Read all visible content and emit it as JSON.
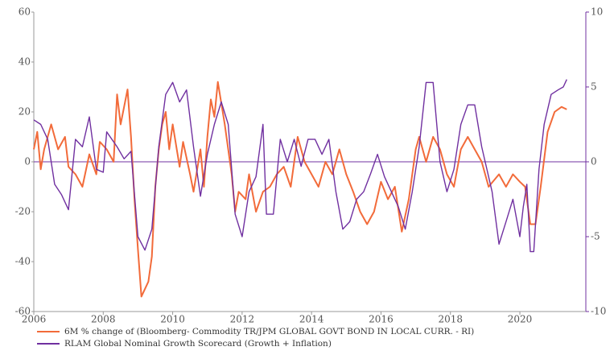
{
  "chart_data": {
    "type": "line",
    "xlim": [
      2006,
      2021.9
    ],
    "xticks": [
      2006,
      2008,
      2010,
      2012,
      2014,
      2016,
      2018,
      2020
    ],
    "ylim": [
      -60,
      60
    ],
    "yticks": [
      -60,
      -40,
      -20,
      0,
      20,
      40,
      60
    ],
    "y2lim": [
      -10,
      10
    ],
    "y2ticks": [
      -10,
      -5,
      0,
      5,
      10
    ],
    "series": [
      {
        "name": "6M % change of (Bloomberg- Commodity TR/JPM GLOBAL GOVT BOND IN LOCAL CURR. - RI)",
        "color": "#f26b3a",
        "x": [
          2006.0,
          2006.1,
          2006.2,
          2006.3,
          2006.5,
          2006.7,
          2006.9,
          2007.0,
          2007.2,
          2007.4,
          2007.6,
          2007.8,
          2007.9,
          2008.1,
          2008.3,
          2008.4,
          2008.5,
          2008.6,
          2008.7,
          2008.8,
          2008.9,
          2009.0,
          2009.1,
          2009.3,
          2009.4,
          2009.5,
          2009.6,
          2009.7,
          2009.8,
          2009.9,
          2010.0,
          2010.2,
          2010.3,
          2010.5,
          2010.6,
          2010.8,
          2010.9,
          2011.0,
          2011.1,
          2011.2,
          2011.3,
          2011.5,
          2011.6,
          2011.7,
          2011.8,
          2011.9,
          2012.1,
          2012.2,
          2012.4,
          2012.6,
          2012.8,
          2013.0,
          2013.2,
          2013.4,
          2013.6,
          2013.8,
          2014.0,
          2014.2,
          2014.4,
          2014.6,
          2014.8,
          2015.0,
          2015.2,
          2015.4,
          2015.6,
          2015.8,
          2016.0,
          2016.2,
          2016.4,
          2016.6,
          2016.8,
          2017.0,
          2017.1,
          2017.3,
          2017.5,
          2017.7,
          2017.9,
          2018.1,
          2018.3,
          2018.5,
          2018.7,
          2018.9,
          2019.1,
          2019.4,
          2019.6,
          2019.8,
          2020.0,
          2020.15,
          2020.3,
          2020.45,
          2020.6,
          2020.8,
          2021.0,
          2021.2,
          2021.35
        ],
        "values": [
          5,
          12,
          -3,
          5,
          15,
          5,
          10,
          -2,
          -5,
          -10,
          3,
          -5,
          8,
          5,
          0,
          27,
          15,
          22,
          29,
          10,
          -15,
          -35,
          -54,
          -48,
          -38,
          -10,
          5,
          15,
          20,
          5,
          15,
          -2,
          8,
          -5,
          -12,
          5,
          -10,
          10,
          25,
          18,
          32,
          15,
          5,
          -5,
          -20,
          -12,
          -15,
          -5,
          -20,
          -12,
          -10,
          -5,
          -2,
          -10,
          10,
          0,
          -5,
          -10,
          0,
          -5,
          5,
          -5,
          -12,
          -20,
          -25,
          -20,
          -8,
          -15,
          -10,
          -28,
          -15,
          5,
          10,
          0,
          10,
          5,
          -5,
          -10,
          5,
          10,
          5,
          0,
          -10,
          -5,
          -10,
          -5,
          -8,
          -10,
          -25,
          -25,
          -10,
          12,
          20,
          22,
          21
        ]
      },
      {
        "name": "RLAM Global Nominal Growth Scorecard (Growth + Inflation)",
        "color": "#7030a0",
        "axis": "y2",
        "x": [
          2006.0,
          2006.2,
          2006.4,
          2006.6,
          2006.8,
          2007.0,
          2007.2,
          2007.4,
          2007.6,
          2007.8,
          2008.0,
          2008.1,
          2008.4,
          2008.6,
          2008.8,
          2009.0,
          2009.2,
          2009.4,
          2009.6,
          2009.8,
          2010.0,
          2010.2,
          2010.4,
          2010.6,
          2010.8,
          2011.0,
          2011.2,
          2011.4,
          2011.6,
          2011.8,
          2012.0,
          2012.2,
          2012.4,
          2012.6,
          2012.7,
          2012.9,
          2013.1,
          2013.3,
          2013.5,
          2013.7,
          2013.9,
          2014.1,
          2014.3,
          2014.5,
          2014.7,
          2014.9,
          2015.1,
          2015.3,
          2015.5,
          2015.7,
          2015.9,
          2016.1,
          2016.3,
          2016.5,
          2016.7,
          2016.9,
          2017.1,
          2017.3,
          2017.5,
          2017.7,
          2017.9,
          2018.1,
          2018.3,
          2018.5,
          2018.7,
          2018.9,
          2019.2,
          2019.4,
          2019.6,
          2019.8,
          2020.0,
          2020.1,
          2020.2,
          2020.3,
          2020.4,
          2020.55,
          2020.7,
          2020.9,
          2021.1,
          2021.25,
          2021.35
        ],
        "values": [
          2.8,
          2.5,
          1.5,
          -1.5,
          -2.2,
          -3.2,
          1.5,
          1.0,
          3.0,
          -0.5,
          -0.7,
          2.0,
          1.0,
          0.2,
          0.7,
          -5.0,
          -5.9,
          -4.5,
          1.0,
          4.5,
          5.3,
          4.0,
          4.8,
          1.0,
          -2.3,
          0.5,
          2.5,
          4.0,
          2.5,
          -3.5,
          -5.0,
          -2.0,
          -1.0,
          2.5,
          -3.5,
          -3.5,
          1.5,
          0,
          1.5,
          -0.3,
          1.5,
          1.5,
          0.5,
          1.5,
          -2.0,
          -4.5,
          -4.0,
          -2.5,
          -2.0,
          -0.8,
          0.5,
          -1.0,
          -2.0,
          -3.0,
          -4.5,
          -2.0,
          1.0,
          5.3,
          5.3,
          0,
          -2.0,
          -0.5,
          2.5,
          3.8,
          3.8,
          1.0,
          -2.0,
          -5.5,
          -4.0,
          -2.5,
          -5.0,
          -3.0,
          -1.5,
          -6.0,
          -6.0,
          -0.5,
          2.5,
          4.5,
          4.8,
          5.0,
          5.5
        ]
      }
    ]
  }
}
